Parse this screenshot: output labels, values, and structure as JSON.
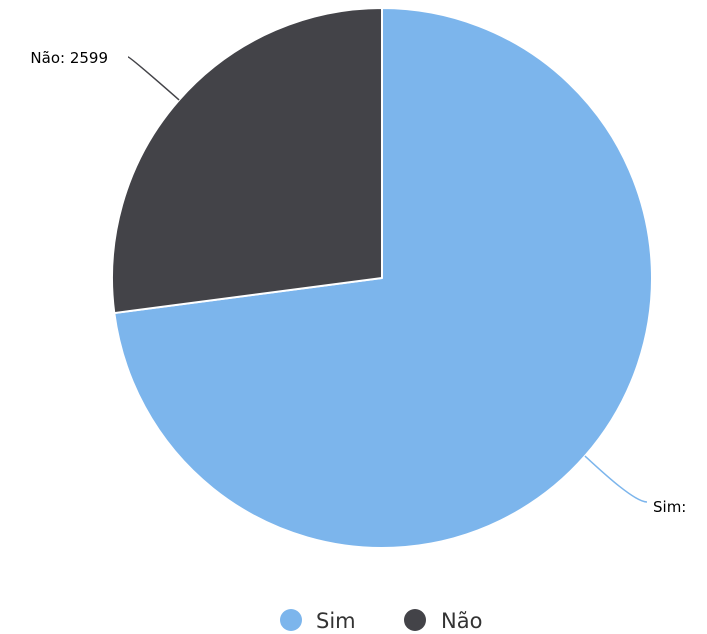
{
  "chart_data": {
    "type": "pie",
    "title": "",
    "series": [
      {
        "name": "",
        "points": [
          {
            "name": "Sim",
            "value": 7001,
            "color": "#7cb5ec",
            "label": "Sim:"
          },
          {
            "name": "Não",
            "value": 2599,
            "color": "#434348",
            "label": "Não: 2599"
          }
        ]
      }
    ],
    "legend": {
      "position": "bottom-center",
      "items": [
        "Sim",
        "Não"
      ]
    },
    "data_labels": true,
    "start_angle": "top",
    "direction": "clockwise"
  }
}
